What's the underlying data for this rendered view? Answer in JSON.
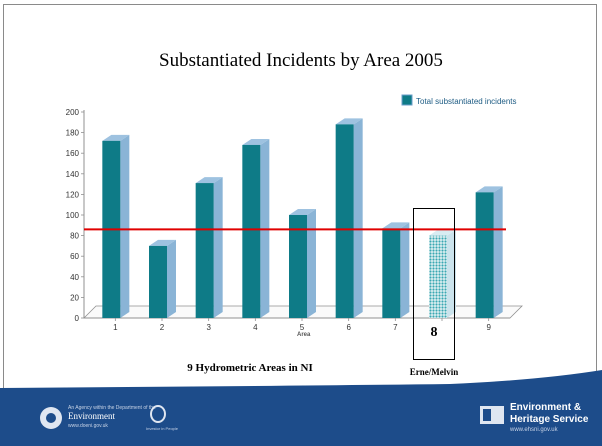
{
  "slide": {
    "title": "Substantiated Incidents by Area 2005",
    "subtitle": "9 Hydrometric Areas in NI",
    "highlight": {
      "number": "8",
      "name": "Erne/Melvin"
    }
  },
  "chart_data": {
    "type": "bar",
    "title": "Substantiated Incidents by Area 2005",
    "xlabel": "Area",
    "ylabel": "",
    "categories": [
      "1",
      "2",
      "3",
      "4",
      "5",
      "6",
      "7",
      "8",
      "9"
    ],
    "series": [
      {
        "name": "Total substantiated incidents",
        "values": [
          172,
          70,
          131,
          168,
          100,
          188,
          87,
          80,
          122
        ]
      }
    ],
    "y_ticks": [
      0,
      20,
      40,
      60,
      80,
      100,
      120,
      140,
      160,
      180,
      200
    ],
    "ylim": [
      0,
      200
    ],
    "reference_line": 86,
    "highlight_category": "8",
    "legend_position": "top-right",
    "grid": false,
    "colors": {
      "bar_front": "#0e7b87",
      "bar_side": "#8ab4d6",
      "bar_top": "#9ec2e0",
      "reference_line": "#e00000",
      "axis": "#909090",
      "highlight_pattern": "#3aa7b2"
    }
  },
  "footer": {
    "color": "#1d4c8a",
    "doe_small": "An Agency within the Department of the",
    "doe_name": "Environment",
    "doe_url": "www.doeni.gov.uk",
    "ring_caption": "Investor in People",
    "ehs_line1": "Environment &",
    "ehs_line2": "Heritage Service",
    "ehs_url": "www.ehsni.gov.uk"
  }
}
